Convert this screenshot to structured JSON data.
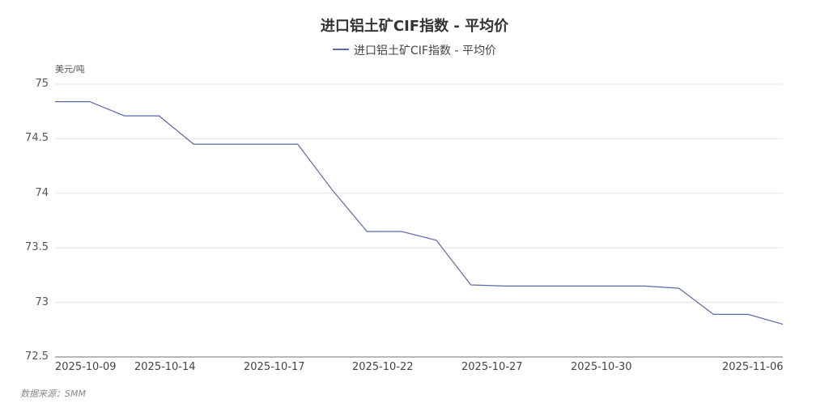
{
  "title": "进口铝土矿CIF指数 - 平均价",
  "legend": {
    "label": "进口铝土矿CIF指数 - 平均价",
    "color": "#5b6aa8"
  },
  "unit_label": "美元/吨",
  "source": "数据来源：SMM",
  "y_ticks": [
    "75",
    "74.5",
    "74",
    "73.5",
    "73",
    "72.5"
  ],
  "x_ticks": [
    "2025-10-09",
    "2025-10-14",
    "2025-10-17",
    "2025-10-22",
    "2025-10-27",
    "2025-10-30",
    "2025-11-06"
  ],
  "chart_data": {
    "type": "line",
    "title": "进口铝土矿CIF指数 - 平均价",
    "xlabel": "",
    "ylabel": "美元/吨",
    "ylim": [
      72.5,
      75
    ],
    "grid": true,
    "legend_position": "top",
    "x_tick_labels": [
      "2025-10-09",
      "2025-10-14",
      "2025-10-17",
      "2025-10-22",
      "2025-10-27",
      "2025-10-30",
      "2025-11-06"
    ],
    "series": [
      {
        "name": "进口铝土矿CIF指数 - 平均价",
        "color": "#5b6aa8",
        "values": [
          74.84,
          74.84,
          74.71,
          74.71,
          74.45,
          74.45,
          74.45,
          74.45,
          74.03,
          73.65,
          73.65,
          73.57,
          73.16,
          73.15,
          73.15,
          73.15,
          73.15,
          73.15,
          73.13,
          72.89,
          72.89,
          72.8
        ]
      }
    ]
  }
}
